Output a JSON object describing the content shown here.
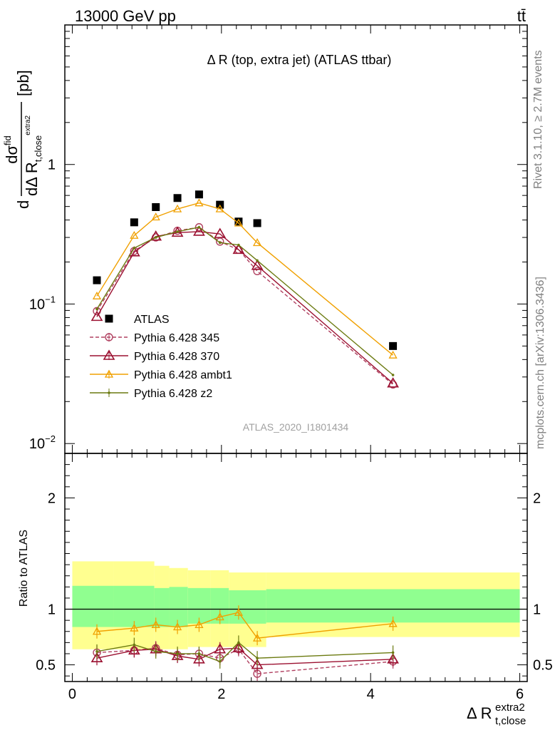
{
  "header": {
    "energy_label": "13000 GeV pp",
    "process_label": "tt̄"
  },
  "side_labels": {
    "rivet": "Rivet 3.1.10, ≥ 2.7M events",
    "mcplots": "mcplots.cern.ch [arXiv:1306.3436]"
  },
  "colors": {
    "data": "#000000",
    "p345": "#b04060",
    "p370": "#9b1030",
    "ambt1": "#f0a000",
    "z2": "#6b7a10",
    "band_inner": "#90ff90",
    "band_outer": "#ffff90"
  },
  "chart_data": [
    {
      "type": "scatter",
      "title": "Δ R (top, extra jet) (ATLAS ttbar)",
      "analysis_label": "ATLAS_2020_I1801434",
      "ylabel_num": "dσ",
      "ylabel_num_sup": "fid",
      "ylabel_den": "dΔ R",
      "ylabel_den_sub": "t,close",
      "ylabel_den_sup": "extra2",
      "ylabel_unit": "[pb]",
      "yscale": "log",
      "xlim": [
        -0.1,
        6.1
      ],
      "ylim": [
        0.0085,
        10
      ],
      "y_ticks": [
        {
          "value": 0.01,
          "base": "10",
          "exp": "−2"
        },
        {
          "value": 0.1,
          "base": "10",
          "exp": "−1"
        },
        {
          "value": 1,
          "base": "1",
          "exp": ""
        }
      ],
      "legend_position": "lower-left",
      "series": [
        {
          "name": "ATLAS",
          "key": "data",
          "marker": "square",
          "x": [
            0.33,
            0.83,
            1.12,
            1.41,
            1.7,
            1.98,
            2.23,
            2.48,
            4.3
          ],
          "y": [
            0.148,
            0.385,
            0.495,
            0.575,
            0.61,
            0.515,
            0.39,
            0.38,
            0.05
          ]
        },
        {
          "name": "Pythia 6.428 345",
          "key": "p345",
          "marker": "circle",
          "dash": true,
          "x": [
            0.33,
            0.83,
            1.12,
            1.41,
            1.7,
            1.98,
            2.23,
            2.48,
            4.3
          ],
          "y": [
            0.089,
            0.24,
            0.3,
            0.335,
            0.355,
            0.28,
            0.245,
            0.172,
            0.0265
          ]
        },
        {
          "name": "Pythia 6.428 370",
          "key": "p370",
          "marker": "triangle",
          "x": [
            0.33,
            0.83,
            1.12,
            1.41,
            1.7,
            1.98,
            2.23,
            2.48,
            4.3
          ],
          "y": [
            0.081,
            0.235,
            0.305,
            0.325,
            0.33,
            0.318,
            0.245,
            0.188,
            0.027
          ]
        },
        {
          "name": "Pythia 6.428 ambt1",
          "key": "ambt1",
          "marker": "triangle-small",
          "x": [
            0.33,
            0.83,
            1.12,
            1.41,
            1.7,
            1.98,
            2.23,
            2.48,
            4.3
          ],
          "y": [
            0.114,
            0.31,
            0.42,
            0.48,
            0.53,
            0.48,
            0.38,
            0.275,
            0.043
          ]
        },
        {
          "name": "Pythia 6.428 z2",
          "key": "z2",
          "marker": "dot",
          "x": [
            0.33,
            0.83,
            1.12,
            1.41,
            1.7,
            1.98,
            2.23,
            2.48,
            4.3
          ],
          "y": [
            0.092,
            0.252,
            0.3,
            0.33,
            0.355,
            0.275,
            0.265,
            0.205,
            0.031
          ]
        }
      ]
    },
    {
      "type": "line",
      "ylabel": "Ratio to ATLAS",
      "xlabel": "Δ R",
      "xlabel_sub": "t,close",
      "xlabel_sup": "extra2",
      "xlim": [
        -0.1,
        6.1
      ],
      "ylim": [
        0.35,
        2.4
      ],
      "x_ticks": [
        0,
        2,
        4,
        6
      ],
      "y_ticks": [
        0.5,
        1,
        2
      ],
      "bands": {
        "edges": [
          0.0,
          0.55,
          1.1,
          1.3,
          1.55,
          1.85,
          2.1,
          2.6,
          6.0
        ],
        "inner_low": [
          0.84,
          0.84,
          0.84,
          0.84,
          0.87,
          0.87,
          0.87,
          0.88
        ],
        "inner_high": [
          1.21,
          1.21,
          1.19,
          1.2,
          1.19,
          1.19,
          1.17,
          1.18
        ],
        "outer_low": [
          0.64,
          0.64,
          0.64,
          0.64,
          0.66,
          0.66,
          0.66,
          0.75
        ],
        "outer_high": [
          1.43,
          1.43,
          1.39,
          1.37,
          1.35,
          1.35,
          1.33,
          1.33
        ]
      },
      "series": [
        {
          "name": "Pythia 6.428 345",
          "key": "p345",
          "x": [
            0.33,
            0.83,
            1.12,
            1.41,
            1.7,
            1.98,
            2.23,
            2.48,
            4.3
          ],
          "y": [
            0.61,
            0.63,
            0.65,
            0.59,
            0.6,
            0.56,
            0.64,
            0.42,
            0.53
          ]
        },
        {
          "name": "Pythia 6.428 370",
          "key": "p370",
          "x": [
            0.33,
            0.83,
            1.12,
            1.41,
            1.7,
            1.98,
            2.23,
            2.48,
            4.3
          ],
          "y": [
            0.56,
            0.63,
            0.64,
            0.58,
            0.55,
            0.64,
            0.65,
            0.5,
            0.55
          ]
        },
        {
          "name": "Pythia 6.428 ambt1",
          "key": "ambt1",
          "x": [
            0.33,
            0.83,
            1.12,
            1.41,
            1.7,
            1.98,
            2.23,
            2.48,
            4.3
          ],
          "y": [
            0.8,
            0.83,
            0.86,
            0.84,
            0.86,
            0.93,
            0.97,
            0.74,
            0.87
          ]
        },
        {
          "name": "Pythia 6.428 z2",
          "key": "z2",
          "x": [
            0.33,
            0.83,
            1.12,
            1.41,
            1.7,
            1.98,
            2.23,
            2.48,
            4.3
          ],
          "y": [
            0.62,
            0.68,
            0.62,
            0.6,
            0.6,
            0.53,
            0.7,
            0.56,
            0.61
          ]
        }
      ]
    }
  ]
}
